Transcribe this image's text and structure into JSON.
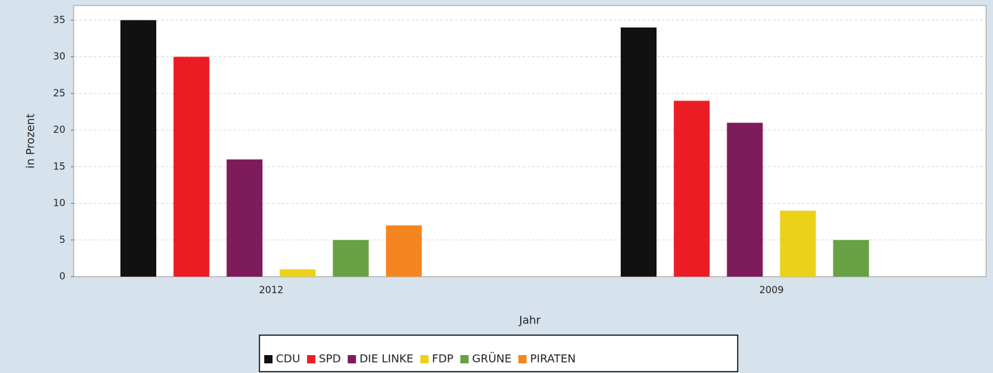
{
  "chart_data": {
    "type": "bar",
    "categories": [
      "2012",
      "2009"
    ],
    "series": [
      {
        "name": "CDU",
        "color": "#111111",
        "values": [
          35,
          34
        ]
      },
      {
        "name": "SPD",
        "color": "#ec1c24",
        "values": [
          30,
          24
        ]
      },
      {
        "name": "DIE LINKE",
        "color": "#7d1b5b",
        "values": [
          16,
          21
        ]
      },
      {
        "name": "FDP",
        "color": "#ecd11a",
        "values": [
          1,
          9
        ]
      },
      {
        "name": "GRÜNE",
        "color": "#67a143",
        "values": [
          5,
          5
        ]
      },
      {
        "name": "PIRATEN",
        "color": "#f5861f",
        "values": [
          7,
          null
        ]
      }
    ],
    "xlabel": "Jahr",
    "ylabel": "in Prozent",
    "ylim": [
      0,
      37
    ],
    "yticks": [
      0,
      5,
      10,
      15,
      20,
      25,
      30,
      35
    ],
    "grid": true,
    "legend": "bottom"
  }
}
